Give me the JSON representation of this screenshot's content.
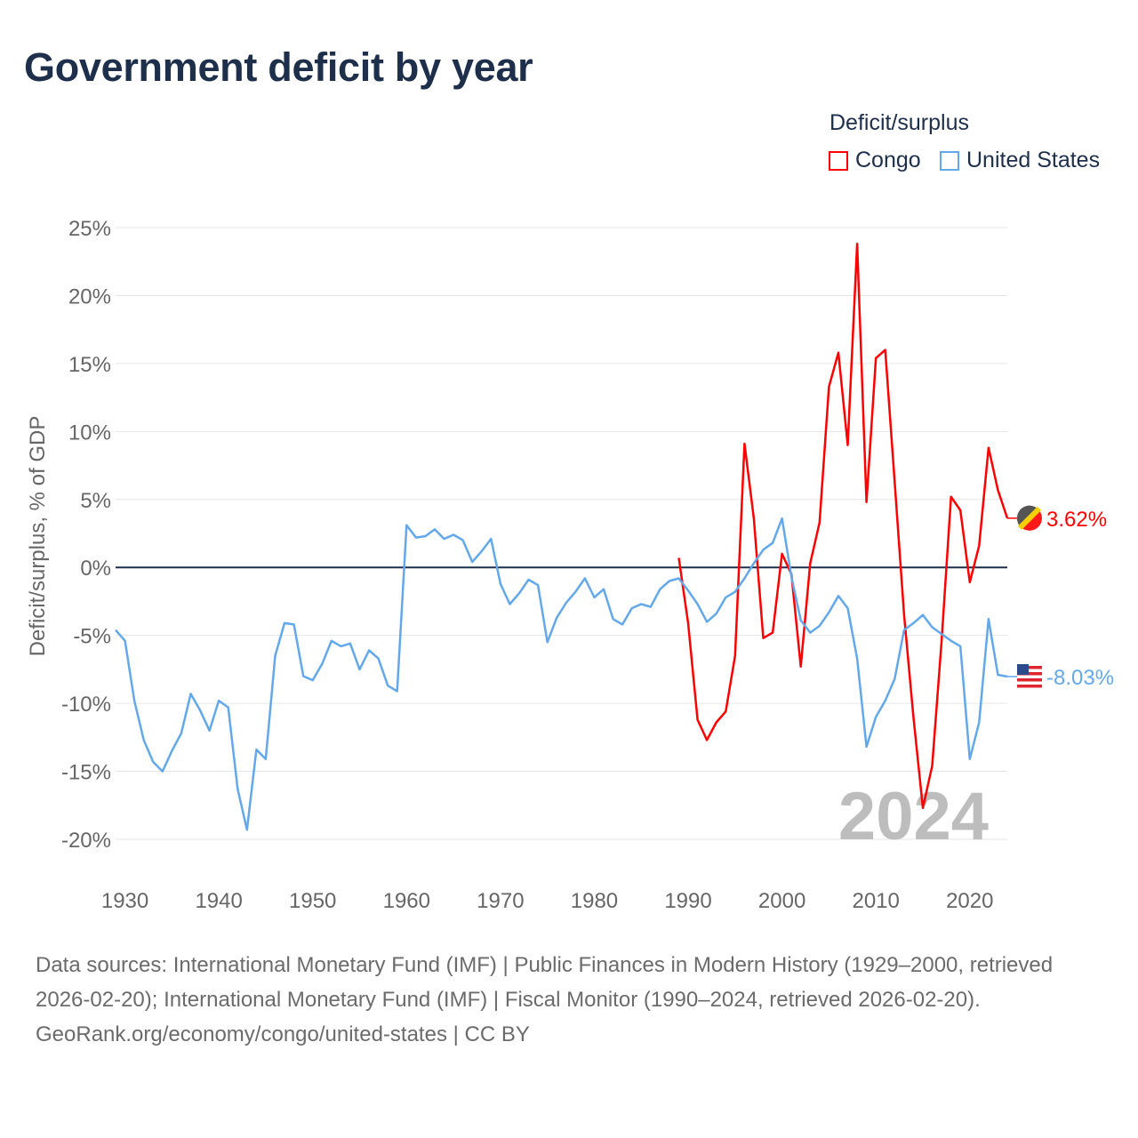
{
  "title": "Government deficit by year",
  "legend": {
    "title": "Deficit/surplus",
    "items": [
      {
        "label": "Congo",
        "color": "#ff0000"
      },
      {
        "label": "United States",
        "color": "#62a8ea"
      }
    ]
  },
  "year_watermark": "2024",
  "footer": {
    "sources": "Data sources: International Monetary Fund (IMF) | Public Finances in Modern History (1929–2000, retrieved 2026-02-20); International Monetary Fund (IMF) | Fiscal Monitor (1990–2024, retrieved 2026-02-20).",
    "credit": "GeoRank.org/economy/congo/united-states | CC BY"
  },
  "chart_data": {
    "type": "line",
    "title": "Government deficit by year",
    "xlabel": "",
    "ylabel": "Deficit/surplus, % of GDP",
    "xlim": [
      1929,
      2024
    ],
    "ylim": [
      -20,
      25
    ],
    "x_ticks": [
      "1930",
      "1940",
      "1950",
      "1960",
      "1970",
      "1980",
      "1990",
      "2000",
      "2010",
      "2020"
    ],
    "y_ticks": [
      "25%",
      "20%",
      "15%",
      "10%",
      "5%",
      "0%",
      "-5%",
      "-10%",
      "-15%",
      "-20%"
    ],
    "y_tick_values": [
      25,
      20,
      15,
      10,
      5,
      0,
      -5,
      -10,
      -15,
      -20
    ],
    "grid": true,
    "legend_position": "top-right",
    "series": [
      {
        "name": "Congo",
        "color": "#ff0000",
        "start_year": 1989,
        "end_label": "3.62%",
        "values": [
          0.7,
          -4.1,
          -11.2,
          -12.7,
          -11.4,
          -10.6,
          -6.5,
          9.1,
          3.6,
          -5.2,
          -4.8,
          1.0,
          -0.5,
          -7.3,
          0.3,
          3.3,
          13.3,
          15.8,
          9.0,
          23.8,
          4.8,
          15.4,
          16.0,
          6.3,
          -3.5,
          -11.0,
          -17.7,
          -14.6,
          -5.4,
          5.2,
          4.2,
          -1.1,
          1.6,
          8.8,
          5.7,
          3.62
        ]
      },
      {
        "name": "United States",
        "color": "#62a8ea",
        "start_year": 1929,
        "end_label": "-8.03%",
        "values": [
          -4.6,
          -5.4,
          -9.8,
          -12.7,
          -14.3,
          -15.0,
          -13.5,
          -12.2,
          -9.3,
          -10.5,
          -12.0,
          -9.8,
          -10.3,
          -16.3,
          -19.3,
          -13.4,
          -14.1,
          -6.5,
          -4.1,
          -4.2,
          -8.0,
          -8.3,
          -7.1,
          -5.4,
          -5.8,
          -5.6,
          -7.5,
          -6.1,
          -6.7,
          -8.7,
          -9.1,
          3.1,
          2.2,
          2.3,
          2.8,
          2.1,
          2.4,
          2.0,
          0.4,
          1.2,
          2.1,
          -1.2,
          -2.7,
          -1.9,
          -0.9,
          -1.3,
          -5.5,
          -3.7,
          -2.6,
          -1.8,
          -0.8,
          -2.2,
          -1.6,
          -3.8,
          -4.2,
          -3.0,
          -2.7,
          -2.9,
          -1.6,
          -1.0,
          -0.8,
          -1.7,
          -2.7,
          -4.0,
          -3.4,
          -2.2,
          -1.8,
          -0.8,
          0.3,
          1.3,
          1.8,
          3.6,
          -0.7,
          -3.9,
          -4.8,
          -4.3,
          -3.3,
          -2.1,
          -3.0,
          -6.7,
          -13.2,
          -11.0,
          -9.8,
          -8.2,
          -4.6,
          -4.1,
          -3.5,
          -4.4,
          -4.9,
          -5.4,
          -5.8,
          -14.1,
          -11.4,
          -3.8,
          -7.9,
          -8.03
        ]
      }
    ]
  }
}
